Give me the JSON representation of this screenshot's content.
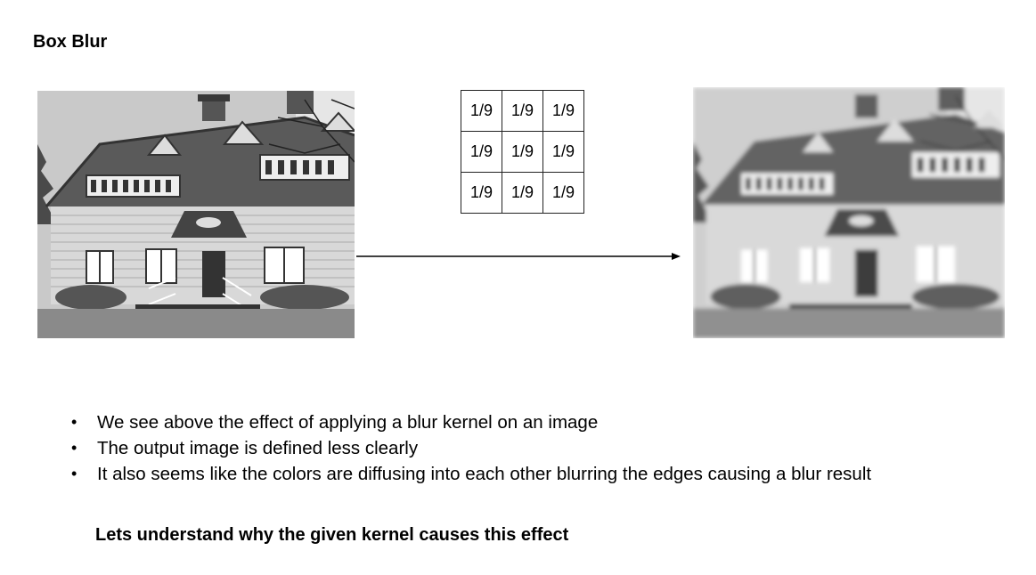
{
  "title": "Box Blur",
  "kernel": {
    "rows": [
      [
        "1/9",
        "1/9",
        "1/9"
      ],
      [
        "1/9",
        "1/9",
        "1/9"
      ],
      [
        "1/9",
        "1/9",
        "1/9"
      ]
    ]
  },
  "images": {
    "input": "house-photo-original",
    "output": "house-photo-blurred"
  },
  "bullets": [
    "We see above the effect of applying a blur kernel on an image",
    "The output image is defined less clearly",
    "It also seems like the colors are diffusing into each other blurring the edges causing a blur result"
  ],
  "conclusion": "Lets understand why the given kernel causes this effect"
}
